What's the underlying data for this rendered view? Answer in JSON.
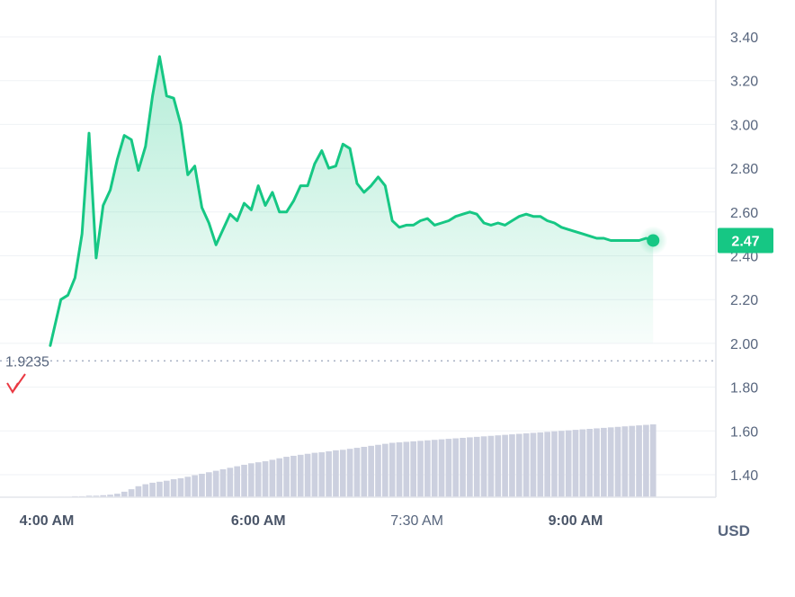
{
  "chart_data": {
    "type": "area",
    "title": "",
    "xlabel": "",
    "ylabel": "",
    "unit": "USD",
    "ylim": [
      1.3,
      3.5
    ],
    "y_ticks": [
      1.4,
      1.6,
      1.8,
      2.0,
      2.2,
      2.4,
      2.6,
      2.8,
      3.0,
      3.2,
      3.4
    ],
    "y_tick_labels": [
      "1.40",
      "1.60",
      "1.80",
      "2.00",
      "2.20",
      "2.40",
      "2.60",
      "2.80",
      "3.00",
      "3.20",
      "3.40"
    ],
    "x_ticks": [
      {
        "label": "4:00 AM",
        "minutes": 240,
        "bold": true
      },
      {
        "label": "6:00 AM",
        "minutes": 360,
        "bold": true
      },
      {
        "label": "7:30 AM",
        "minutes": 450,
        "bold": false
      },
      {
        "label": "9:00 AM",
        "minutes": 540,
        "bold": true
      }
    ],
    "reference_line": {
      "value": 1.92,
      "label": "1.9235"
    },
    "current_value": {
      "value": 2.47,
      "label": "2.47"
    },
    "colors": {
      "line": "#16c784",
      "badge": "#16c784",
      "volume": "#ccd0df",
      "reference": "#a6b0c3",
      "marker": "#ea3943"
    },
    "grid": true,
    "legend": "none",
    "series": [
      {
        "x": [
          242,
          248,
          252,
          256,
          260,
          264,
          268,
          272,
          276,
          280,
          284,
          288,
          292,
          296,
          300,
          304,
          308,
          312,
          316,
          320,
          324,
          328,
          332,
          336,
          340,
          344,
          348,
          352,
          356,
          360,
          364,
          368,
          372,
          376,
          380,
          384,
          388,
          392,
          396,
          400,
          404,
          408,
          412,
          416,
          420,
          424,
          428,
          432,
          436,
          440,
          444,
          448,
          452,
          456,
          460,
          464,
          468,
          472,
          476,
          480,
          484,
          488,
          492,
          496,
          500,
          504,
          508,
          512,
          516,
          520,
          524,
          528,
          532,
          536,
          540,
          544,
          548,
          552,
          556,
          560,
          564,
          568,
          572,
          576,
          580,
          584
        ],
        "y": [
          1.99,
          2.2,
          2.22,
          2.3,
          2.5,
          2.96,
          2.39,
          2.63,
          2.7,
          2.84,
          2.95,
          2.93,
          2.79,
          2.9,
          3.13,
          3.31,
          3.13,
          3.12,
          3.0,
          2.77,
          2.81,
          2.62,
          2.55,
          2.45,
          2.52,
          2.59,
          2.56,
          2.64,
          2.61,
          2.72,
          2.63,
          2.69,
          2.6,
          2.6,
          2.65,
          2.72,
          2.72,
          2.82,
          2.88,
          2.8,
          2.81,
          2.91,
          2.89,
          2.73,
          2.69,
          2.72,
          2.76,
          2.72,
          2.56,
          2.53,
          2.54,
          2.54,
          2.56,
          2.57,
          2.54,
          2.55,
          2.56,
          2.58,
          2.59,
          2.6,
          2.59,
          2.55,
          2.54,
          2.55,
          2.54,
          2.56,
          2.58,
          2.59,
          2.58,
          2.58,
          2.56,
          2.55,
          2.53,
          2.52,
          2.51,
          2.5,
          2.49,
          2.48,
          2.48,
          2.47,
          2.47,
          2.47,
          2.47,
          2.47,
          2.48,
          2.47
        ]
      }
    ],
    "volume": {
      "x": [
        248,
        252,
        256,
        260,
        264,
        268,
        272,
        276,
        280,
        284,
        288,
        292,
        296,
        300,
        304,
        308,
        312,
        316,
        320,
        324,
        328,
        332,
        336,
        340,
        344,
        348,
        352,
        356,
        360,
        364,
        368,
        372,
        376,
        380,
        384,
        388,
        392,
        396,
        400,
        404,
        408,
        412,
        416,
        420,
        424,
        428,
        432,
        436,
        440,
        444,
        448,
        452,
        456,
        460,
        464,
        468,
        472,
        476,
        480,
        484,
        488,
        492,
        496,
        500,
        504,
        508,
        512,
        516,
        520,
        524,
        528,
        532,
        536,
        540,
        544,
        548,
        552,
        556,
        560,
        564,
        568,
        572,
        576,
        580,
        584
      ],
      "values": [
        1,
        1,
        2,
        2,
        3,
        3,
        4,
        5,
        7,
        11,
        16,
        22,
        26,
        29,
        31,
        33,
        36,
        38,
        41,
        44,
        47,
        50,
        53,
        56,
        59,
        62,
        65,
        68,
        70,
        72,
        75,
        78,
        81,
        83,
        85,
        87,
        89,
        90,
        92,
        94,
        95,
        97,
        99,
        101,
        103,
        105,
        107,
        109,
        110,
        111,
        112,
        113,
        114,
        115,
        116,
        117,
        118,
        119,
        120,
        121,
        122,
        123,
        124,
        125,
        126,
        127,
        128,
        129,
        130,
        131,
        132,
        133,
        134,
        135,
        136,
        137,
        138,
        139,
        140,
        141,
        142,
        143,
        144,
        145,
        146
      ]
    }
  }
}
